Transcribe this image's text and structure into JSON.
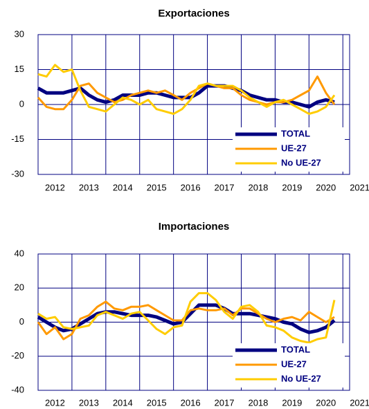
{
  "chart_data": [
    {
      "type": "line",
      "title": "Exportaciones",
      "x": [
        2012,
        2012.25,
        2012.5,
        2012.75,
        2013,
        2013.25,
        2013.5,
        2013.75,
        2014,
        2014.25,
        2014.5,
        2014.75,
        2015,
        2015.25,
        2015.5,
        2015.75,
        2016,
        2016.25,
        2016.5,
        2016.75,
        2017,
        2017.25,
        2017.5,
        2017.75,
        2018,
        2018.25,
        2018.5,
        2018.75,
        2019,
        2019.25,
        2019.5,
        2019.75,
        2020,
        2020.25,
        2020.5,
        2020.75
      ],
      "series": [
        {
          "name": "TOTAL",
          "color": "#000080",
          "values": [
            7,
            5,
            5,
            5,
            6,
            7,
            4,
            2,
            1,
            2,
            4,
            4,
            4,
            5,
            5,
            4,
            3,
            3,
            3,
            5,
            8,
            8,
            8,
            7,
            6,
            4,
            3,
            2,
            2,
            1,
            1,
            0,
            -1,
            1,
            2,
            1
          ]
        },
        {
          "name": "UE-27",
          "color": "#FF9900",
          "values": [
            3,
            -1,
            -2,
            -2,
            2,
            8,
            9,
            5,
            3,
            1,
            2,
            4,
            5,
            6,
            5,
            6,
            4,
            2,
            5,
            7,
            9,
            8,
            7,
            7,
            4,
            2,
            1,
            0,
            1,
            1,
            2,
            4,
            6,
            12,
            5,
            0
          ]
        },
        {
          "name": "No UE-27",
          "color": "#FFCC00",
          "values": [
            13,
            12,
            17,
            14,
            15,
            6,
            -1,
            -2,
            -3,
            0,
            3,
            2,
            0,
            2,
            -2,
            -3,
            -4,
            -2,
            2,
            8,
            9,
            8,
            8,
            8,
            6,
            3,
            1,
            -1,
            1,
            2,
            0,
            -2,
            -4,
            -3,
            -1,
            4
          ]
        }
      ],
      "xlim": [
        2012,
        2021.2
      ],
      "xticks": [
        {
          "value": 2012.5,
          "label": "2012"
        },
        {
          "value": 2013.5,
          "label": "2013"
        },
        {
          "value": 2014.5,
          "label": "2014"
        },
        {
          "value": 2015.5,
          "label": "2015"
        },
        {
          "value": 2016.5,
          "label": "2016"
        },
        {
          "value": 2017.5,
          "label": "2017"
        },
        {
          "value": 2018.5,
          "label": "2018"
        },
        {
          "value": 2019.5,
          "label": "2019"
        },
        {
          "value": 2020.5,
          "label": "2020"
        },
        {
          "value": 2021.5,
          "label": "2021"
        }
      ],
      "xgrid": [
        2013,
        2014,
        2015,
        2016,
        2017,
        2018,
        2019,
        2020,
        2021
      ],
      "ylim": [
        -30,
        30
      ],
      "yticks": [
        -30,
        -15,
        0,
        15,
        30
      ],
      "legend": "lower right"
    },
    {
      "type": "line",
      "title": "Importaciones",
      "x": [
        2012,
        2012.25,
        2012.5,
        2012.75,
        2013,
        2013.25,
        2013.5,
        2013.75,
        2014,
        2014.25,
        2014.5,
        2014.75,
        2015,
        2015.25,
        2015.5,
        2015.75,
        2016,
        2016.25,
        2016.5,
        2016.75,
        2017,
        2017.25,
        2017.5,
        2017.75,
        2018,
        2018.25,
        2018.5,
        2018.75,
        2019,
        2019.25,
        2019.5,
        2019.75,
        2020,
        2020.25,
        2020.5,
        2020.75
      ],
      "series": [
        {
          "name": "TOTAL",
          "color": "#000080",
          "values": [
            3,
            0,
            -3,
            -5,
            -4,
            -1,
            2,
            5,
            6,
            6,
            5,
            4,
            4,
            4,
            3,
            1,
            -1,
            0,
            5,
            10,
            10,
            10,
            8,
            5,
            5,
            5,
            4,
            3,
            2,
            0,
            -1,
            -4,
            -6,
            -5,
            -3,
            1
          ]
        },
        {
          "name": "UE-27",
          "color": "#FF9900",
          "values": [
            0,
            -7,
            -3,
            -10,
            -7,
            2,
            4,
            9,
            12,
            8,
            7,
            9,
            9,
            10,
            7,
            4,
            1,
            1,
            7,
            8,
            7,
            7,
            8,
            4,
            8,
            8,
            5,
            2,
            0,
            2,
            3,
            1,
            6,
            3,
            0,
            3
          ]
        },
        {
          "name": "No UE-27",
          "color": "#FFCC00",
          "values": [
            5,
            2,
            3,
            -3,
            -4,
            -3,
            -2,
            4,
            6,
            4,
            2,
            5,
            6,
            1,
            -4,
            -7,
            -3,
            -2,
            12,
            17,
            17,
            13,
            6,
            2,
            9,
            10,
            6,
            -2,
            -3,
            -5,
            -9,
            -11,
            -12,
            -10,
            -9,
            13
          ]
        }
      ],
      "xlim": [
        2012,
        2021.2
      ],
      "xticks": [
        {
          "value": 2012.5,
          "label": "2012"
        },
        {
          "value": 2013.5,
          "label": "2013"
        },
        {
          "value": 2014.5,
          "label": "2014"
        },
        {
          "value": 2015.5,
          "label": "2015"
        },
        {
          "value": 2016.5,
          "label": "2016"
        },
        {
          "value": 2017.5,
          "label": "2017"
        },
        {
          "value": 2018.5,
          "label": "2018"
        },
        {
          "value": 2019.5,
          "label": "2019"
        },
        {
          "value": 2020.5,
          "label": "2020"
        },
        {
          "value": 2021.5,
          "label": "2021"
        }
      ],
      "xgrid": [
        2013,
        2014,
        2015,
        2016,
        2017,
        2018,
        2019,
        2020,
        2021
      ],
      "ylim": [
        -40,
        40
      ],
      "yticks": [
        -40,
        -20,
        0,
        20,
        40
      ],
      "legend": "lower right"
    }
  ]
}
